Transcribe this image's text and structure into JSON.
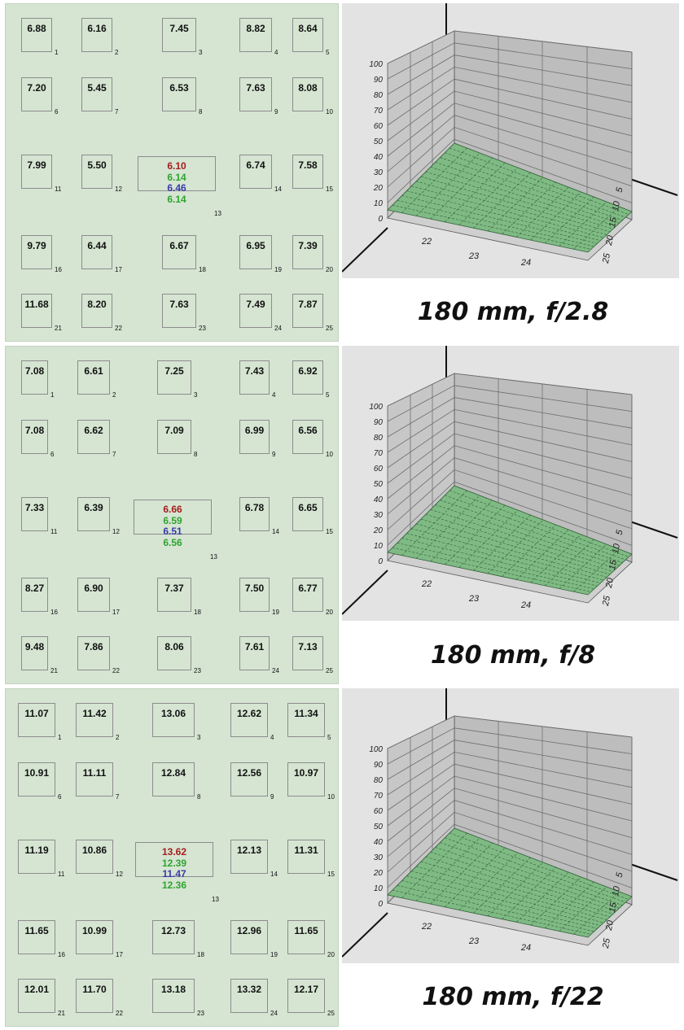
{
  "panels": [
    {
      "caption": "180 mm, f/2.8",
      "cells": [
        {
          "value": "6.88",
          "index": "1"
        },
        {
          "value": "6.16",
          "index": "2"
        },
        {
          "value": "7.45",
          "index": "3"
        },
        {
          "value": "8.82",
          "index": "4"
        },
        {
          "value": "8.64",
          "index": "5"
        },
        {
          "value": "7.20",
          "index": "6"
        },
        {
          "value": "5.45",
          "index": "7"
        },
        {
          "value": "6.53",
          "index": "8"
        },
        {
          "value": "7.63",
          "index": "9"
        },
        {
          "value": "8.08",
          "index": "10"
        },
        {
          "value": "7.99",
          "index": "11"
        },
        {
          "value": "5.50",
          "index": "12"
        },
        {
          "value": "",
          "index": "13"
        },
        {
          "value": "6.74",
          "index": "14"
        },
        {
          "value": "7.58",
          "index": "15"
        },
        {
          "value": "9.79",
          "index": "16"
        },
        {
          "value": "6.44",
          "index": "17"
        },
        {
          "value": "6.67",
          "index": "18"
        },
        {
          "value": "6.95",
          "index": "19"
        },
        {
          "value": "7.39",
          "index": "20"
        },
        {
          "value": "11.68",
          "index": "21"
        },
        {
          "value": "8.20",
          "index": "22"
        },
        {
          "value": "7.63",
          "index": "23"
        },
        {
          "value": "7.49",
          "index": "24"
        },
        {
          "value": "7.87",
          "index": "25"
        }
      ],
      "center": {
        "red": "6.10",
        "green1": "6.14",
        "blue": "6.46",
        "green2": "6.14"
      }
    },
    {
      "caption": "180 mm, f/8",
      "cells": [
        {
          "value": "7.08",
          "index": "1"
        },
        {
          "value": "6.61",
          "index": "2"
        },
        {
          "value": "7.25",
          "index": "3"
        },
        {
          "value": "7.43",
          "index": "4"
        },
        {
          "value": "6.92",
          "index": "5"
        },
        {
          "value": "7.08",
          "index": "6"
        },
        {
          "value": "6.62",
          "index": "7"
        },
        {
          "value": "7.09",
          "index": "8"
        },
        {
          "value": "6.99",
          "index": "9"
        },
        {
          "value": "6.56",
          "index": "10"
        },
        {
          "value": "7.33",
          "index": "11"
        },
        {
          "value": "6.39",
          "index": "12"
        },
        {
          "value": "",
          "index": "13"
        },
        {
          "value": "6.78",
          "index": "14"
        },
        {
          "value": "6.65",
          "index": "15"
        },
        {
          "value": "8.27",
          "index": "16"
        },
        {
          "value": "6.90",
          "index": "17"
        },
        {
          "value": "7.37",
          "index": "18"
        },
        {
          "value": "7.50",
          "index": "19"
        },
        {
          "value": "6.77",
          "index": "20"
        },
        {
          "value": "9.48",
          "index": "21"
        },
        {
          "value": "7.86",
          "index": "22"
        },
        {
          "value": "8.06",
          "index": "23"
        },
        {
          "value": "7.61",
          "index": "24"
        },
        {
          "value": "7.13",
          "index": "25"
        }
      ],
      "center": {
        "red": "6.66",
        "green1": "6.59",
        "blue": "6.51",
        "green2": "6.56"
      }
    },
    {
      "caption": "180 mm, f/22",
      "cells": [
        {
          "value": "11.07",
          "index": "1"
        },
        {
          "value": "11.42",
          "index": "2"
        },
        {
          "value": "13.06",
          "index": "3"
        },
        {
          "value": "12.62",
          "index": "4"
        },
        {
          "value": "11.34",
          "index": "5"
        },
        {
          "value": "10.91",
          "index": "6"
        },
        {
          "value": "11.11",
          "index": "7"
        },
        {
          "value": "12.84",
          "index": "8"
        },
        {
          "value": "12.56",
          "index": "9"
        },
        {
          "value": "10.97",
          "index": "10"
        },
        {
          "value": "11.19",
          "index": "11"
        },
        {
          "value": "10.86",
          "index": "12"
        },
        {
          "value": "",
          "index": "13"
        },
        {
          "value": "12.13",
          "index": "14"
        },
        {
          "value": "11.31",
          "index": "15"
        },
        {
          "value": "11.65",
          "index": "16"
        },
        {
          "value": "10.99",
          "index": "17"
        },
        {
          "value": "12.73",
          "index": "18"
        },
        {
          "value": "12.96",
          "index": "19"
        },
        {
          "value": "11.65",
          "index": "20"
        },
        {
          "value": "12.01",
          "index": "21"
        },
        {
          "value": "11.70",
          "index": "22"
        },
        {
          "value": "13.18",
          "index": "23"
        },
        {
          "value": "13.32",
          "index": "24"
        },
        {
          "value": "12.17",
          "index": "25"
        }
      ],
      "center": {
        "red": "13.62",
        "green1": "12.39",
        "blue": "11.47",
        "green2": "12.36"
      }
    }
  ],
  "chart": {
    "z_ticks": [
      "0",
      "10",
      "20",
      "30",
      "40",
      "50",
      "60",
      "70",
      "80",
      "90",
      "100"
    ],
    "x_ticks": [
      "22",
      "23",
      "24"
    ],
    "y_ticks": [
      "5",
      "10",
      "15",
      "20",
      "25"
    ]
  },
  "colors": {
    "panel_bg": "#d5e5d2",
    "center_red": "#a61c1c",
    "center_green": "#2fa32f",
    "center_blue": "#3a3aa8",
    "surface": "#7fba84"
  }
}
